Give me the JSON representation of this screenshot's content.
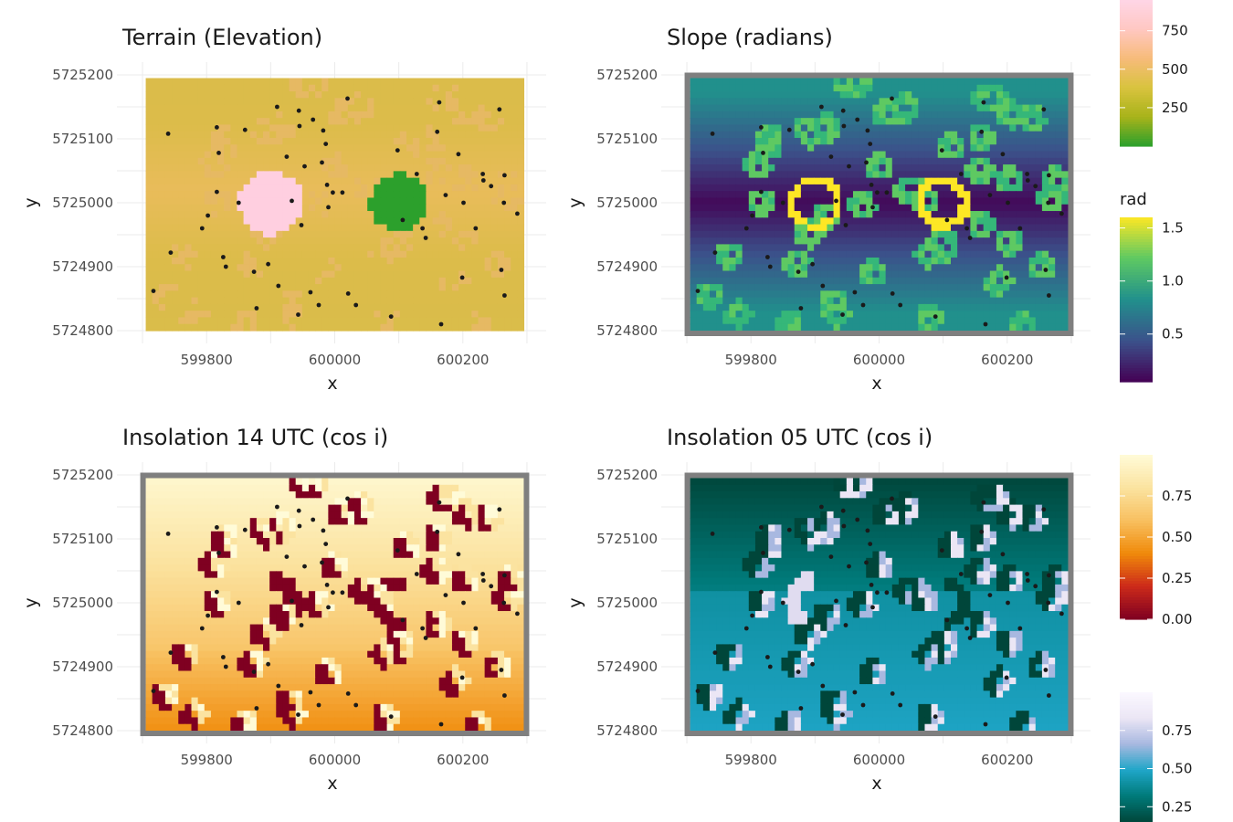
{
  "chart_data": [
    {
      "type": "heatmap",
      "title": "Terrain (Elevation)",
      "xlabel": "x",
      "ylabel": "y",
      "xlim": [
        599660,
        600330
      ],
      "ylim": [
        5724780,
        5725220
      ],
      "xticks": [
        "599800",
        "600000",
        "600200"
      ],
      "xtick_values": [
        599800,
        600000,
        600200
      ],
      "yticks": [
        "5725200",
        "5725100",
        "5725000",
        "5724900",
        "5724800"
      ],
      "ytick_values": [
        5725200,
        5725100,
        5725000,
        5724900,
        5724800
      ],
      "grid": true,
      "border": false,
      "legend": {
        "title": "",
        "placement": "right",
        "ticks": [
          "750",
          "500",
          "250"
        ],
        "tick_values": [
          750,
          500,
          250
        ],
        "range": [
          0,
          950
        ],
        "colors": [
          "#2ca02c",
          "#a8b31a",
          "#d9c33e",
          "#f7bb7a",
          "#ffc7c2",
          "#ffd6e6"
        ]
      },
      "features": {
        "base_colors": [
          "#d8bd4a",
          "#f3bc68"
        ],
        "hill": {
          "x": 599900,
          "y": 5725000,
          "radius": 50,
          "color": "#ffcfe0"
        },
        "pit": {
          "x": 600100,
          "y": 5725000,
          "radius": 45,
          "color": "#2ca02c"
        }
      }
    },
    {
      "type": "heatmap",
      "title": "Slope (radians)",
      "xlabel": "x",
      "ylabel": "y",
      "xlim": [
        599660,
        600330
      ],
      "ylim": [
        5724780,
        5725220
      ],
      "xticks": [
        "599800",
        "600000",
        "600200"
      ],
      "xtick_values": [
        599800,
        600000,
        600200
      ],
      "yticks": [
        "5725200",
        "5725100",
        "5725000",
        "5724900",
        "5724800"
      ],
      "ytick_values": [
        5725200,
        5725100,
        5725000,
        5724900,
        5724800
      ],
      "grid": true,
      "border": true,
      "legend": {
        "title": "rad",
        "placement": "right",
        "ticks": [
          "1.5",
          "1.0",
          "0.5"
        ],
        "tick_values": [
          1.5,
          1.0,
          0.5
        ],
        "range": [
          0.05,
          1.6
        ],
        "colors": [
          "#440154",
          "#3b528b",
          "#21908c",
          "#5ec962",
          "#fde725"
        ]
      }
    },
    {
      "type": "heatmap",
      "title": "Insolation 14 UTC (cos i)",
      "xlabel": "x",
      "ylabel": "y",
      "xlim": [
        599660,
        600330
      ],
      "ylim": [
        5724780,
        5725220
      ],
      "xticks": [
        "599800",
        "600000",
        "600200"
      ],
      "xtick_values": [
        599800,
        600000,
        600200
      ],
      "yticks": [
        "5725200",
        "5725100",
        "5725000",
        "5724900",
        "5724800"
      ],
      "ytick_values": [
        5725200,
        5725100,
        5725000,
        5724900,
        5724800
      ],
      "grid": true,
      "border": true,
      "legend": {
        "title": "",
        "placement": "right",
        "ticks": [
          "0.75",
          "0.50",
          "0.25",
          "0.00"
        ],
        "tick_values": [
          0.75,
          0.5,
          0.25,
          0.0
        ],
        "range": [
          0.0,
          1.0
        ],
        "colors": [
          "#7f0021",
          "#cc2a1a",
          "#f08a0a",
          "#f8c060",
          "#fbe3a0",
          "#fffbd8"
        ]
      }
    },
    {
      "type": "heatmap",
      "title": "Insolation 05 UTC (cos i)",
      "xlabel": "x",
      "ylabel": "y",
      "xlim": [
        599660,
        600330
      ],
      "ylim": [
        5724780,
        5725220
      ],
      "xticks": [
        "599800",
        "600000",
        "600200"
      ],
      "xtick_values": [
        599800,
        600000,
        600200
      ],
      "yticks": [
        "5725200",
        "5725100",
        "5725000",
        "5724900",
        "5724800"
      ],
      "ytick_values": [
        5725200,
        5725100,
        5725000,
        5724900,
        5724800
      ],
      "grid": true,
      "border": true,
      "legend": {
        "title": "",
        "placement": "right",
        "ticks": [
          "0.75",
          "0.50",
          "0.25"
        ],
        "tick_values": [
          0.75,
          0.5,
          0.25
        ],
        "range": [
          0.15,
          1.0
        ],
        "colors": [
          "#00463a",
          "#007a7a",
          "#1fa6c8",
          "#a8b8e0",
          "#ebe6f5",
          "#fbf8ff"
        ]
      }
    }
  ],
  "sample_points": [
    [
      599740,
      5725108
    ],
    [
      599717,
      5724862
    ],
    [
      599744,
      5724922
    ],
    [
      599793,
      5724960
    ],
    [
      599802,
      5724980
    ],
    [
      599816,
      5725118
    ],
    [
      599816,
      5725017
    ],
    [
      599819,
      5725078
    ],
    [
      599826,
      5724915
    ],
    [
      599830,
      5724900
    ],
    [
      599860,
      5725114
    ],
    [
      599850,
      5725000
    ],
    [
      599874,
      5724892
    ],
    [
      599878,
      5724835
    ],
    [
      599896,
      5724904
    ],
    [
      599910,
      5725150
    ],
    [
      599912,
      5724870
    ],
    [
      599925,
      5725072
    ],
    [
      599933,
      5725003
    ],
    [
      599944,
      5725144
    ],
    [
      599943,
      5724825
    ],
    [
      599945,
      5725120
    ],
    [
      599948,
      5724965
    ],
    [
      599953,
      5725057
    ],
    [
      599962,
      5724860
    ],
    [
      599966,
      5725130
    ],
    [
      599975,
      5724840
    ],
    [
      599982,
      5725113
    ],
    [
      599986,
      5725092
    ],
    [
      599980,
      5725063
    ],
    [
      599988,
      5725028
    ],
    [
      599990,
      5724993
    ],
    [
      599997,
      5725016
    ],
    [
      600020,
      5725163
    ],
    [
      600021,
      5724858
    ],
    [
      600033,
      5724840
    ],
    [
      600088,
      5724822
    ],
    [
      600098,
      5725082
    ],
    [
      600106,
      5724973
    ],
    [
      600128,
      5725045
    ],
    [
      600137,
      5724960
    ],
    [
      600142,
      5724945
    ],
    [
      600163,
      5725157
    ],
    [
      600166,
      5724810
    ],
    [
      600173,
      5725012
    ],
    [
      600193,
      5725076
    ],
    [
      600199,
      5724883
    ],
    [
      600201,
      5725000
    ],
    [
      600220,
      5724960
    ],
    [
      600231,
      5725045
    ],
    [
      600232,
      5725035
    ],
    [
      600244,
      5725026
    ],
    [
      600257,
      5725146
    ],
    [
      600260,
      5724895
    ],
    [
      600264,
      5725000
    ],
    [
      600265,
      5724855
    ],
    [
      600265,
      5725043
    ],
    [
      600285,
      5724983
    ],
    [
      600160,
      5725111
    ],
    [
      600012,
      5725016
    ]
  ]
}
